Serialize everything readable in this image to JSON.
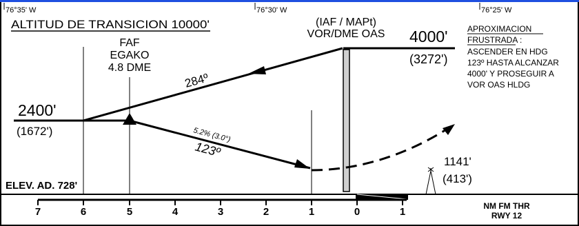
{
  "colors": {
    "ink": "#000000",
    "paper": "#ffffff",
    "accent_bar": "#1f4fe0",
    "tower_fill": "#cfcfcf"
  },
  "coordinates": {
    "left": "76°35' W",
    "center": "76°30' W",
    "right": "76°25' W"
  },
  "transition_altitude": "ALTITUD DE TRANSICION 10000'",
  "iaf_label_1": "(IAF / MAPt)",
  "iaf_label_2": "VOR/DME OAS",
  "iaf_altitude": "4000'",
  "iaf_height": "(3272')",
  "faf": {
    "title": "FAF",
    "name": "EGAKO",
    "dme": "4.8 DME"
  },
  "initial_altitude": "2400'",
  "initial_height": "(1672')",
  "inbound_course": "284º",
  "outbound_course": "123º",
  "glide_path": "5.2% (3.0°)",
  "missed_approach": {
    "title_1": "APROXIMACION",
    "title_2": "FRUSTRADA :",
    "lines": [
      "ASCENDER EN HDG",
      "123º HASTA ALCANZAR",
      "4000' Y PROSEGUIR A",
      "VOR OAS HLDG"
    ]
  },
  "obstacle": {
    "altitude": "1141'",
    "height": "(413')"
  },
  "elevation": "ELEV. AD. 728'",
  "scale": {
    "ticks": [
      "7",
      "6",
      "5",
      "4",
      "3",
      "2",
      "1",
      "0",
      "1"
    ],
    "unit_1": "NM FM THR",
    "unit_2": "RWY 12"
  },
  "icons": [
    "faf-triangle-icon",
    "obstacle-tower-icon"
  ]
}
